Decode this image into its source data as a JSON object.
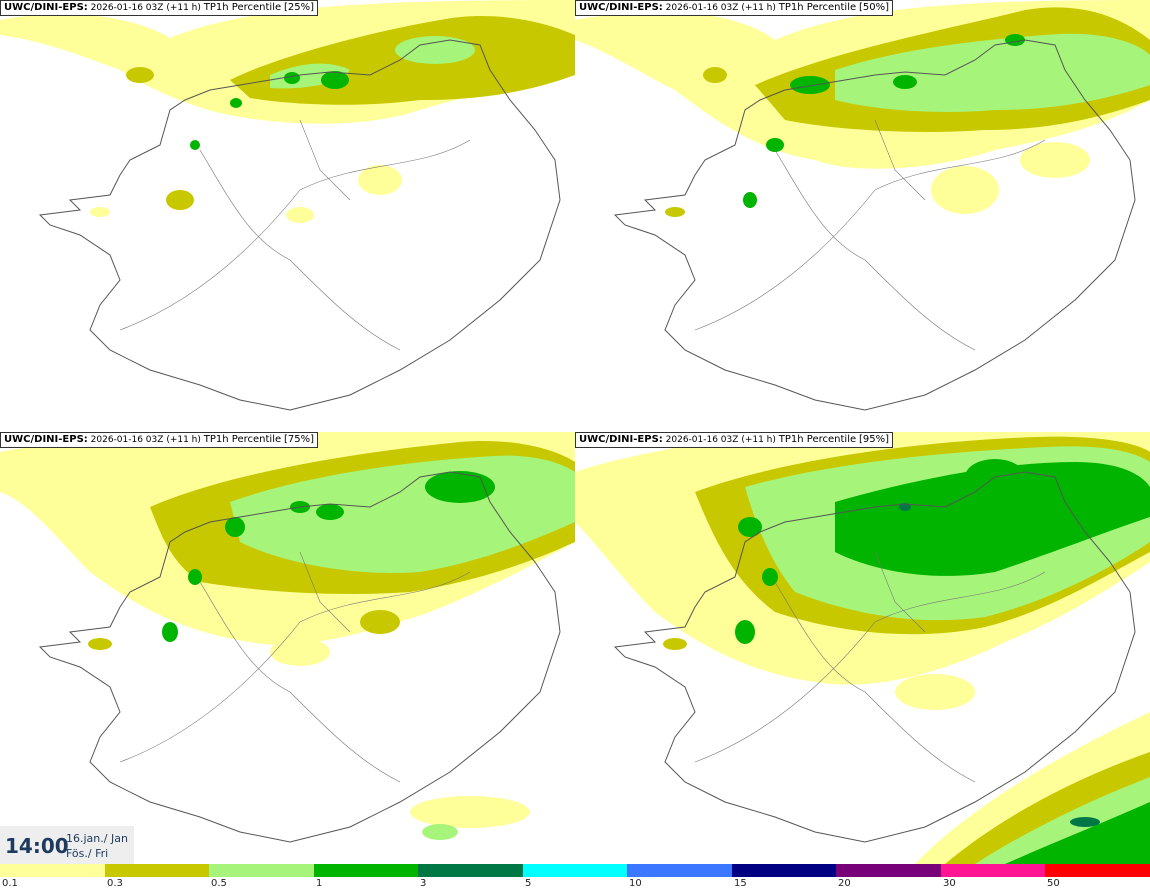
{
  "panels": [
    {
      "model": "UWC/DINI-EPS",
      "sep": ":",
      "run": "2026-01-16 03Z",
      "lead": "(+11 h)",
      "field": "TP1h Percentile",
      "percentile": "[25%]"
    },
    {
      "model": "UWC/DINI-EPS",
      "sep": ":",
      "run": "2026-01-16 03Z",
      "lead": "(+11 h)",
      "field": "TP1h Percentile",
      "percentile": "[50%]"
    },
    {
      "model": "UWC/DINI-EPS",
      "sep": ":",
      "run": "2026-01-16 03Z",
      "lead": "(+11 h)",
      "field": "TP1h Percentile",
      "percentile": "[75%]"
    },
    {
      "model": "UWC/DINI-EPS",
      "sep": ":",
      "run": "2026-01-16 03Z",
      "lead": "(+11 h)",
      "field": "TP1h Percentile",
      "percentile": "[95%]"
    }
  ],
  "valid_time": {
    "time": "14:00",
    "date_line1": "16.jan./ Jan",
    "date_line2": "Fös./ Fri"
  },
  "legend": {
    "colors": [
      "#ffff99",
      "#c8c800",
      "#a6f57a",
      "#00b400",
      "#007846",
      "#00ffff",
      "#3c78ff",
      "#000082",
      "#780078",
      "#ff1493",
      "#ff0000"
    ],
    "labels": [
      "0.1",
      "0.3",
      "0.5",
      "1",
      "3",
      "5",
      "10",
      "15",
      "20",
      "30",
      "50"
    ]
  },
  "colors": {
    "outline": "#555555",
    "road": "#777777"
  }
}
